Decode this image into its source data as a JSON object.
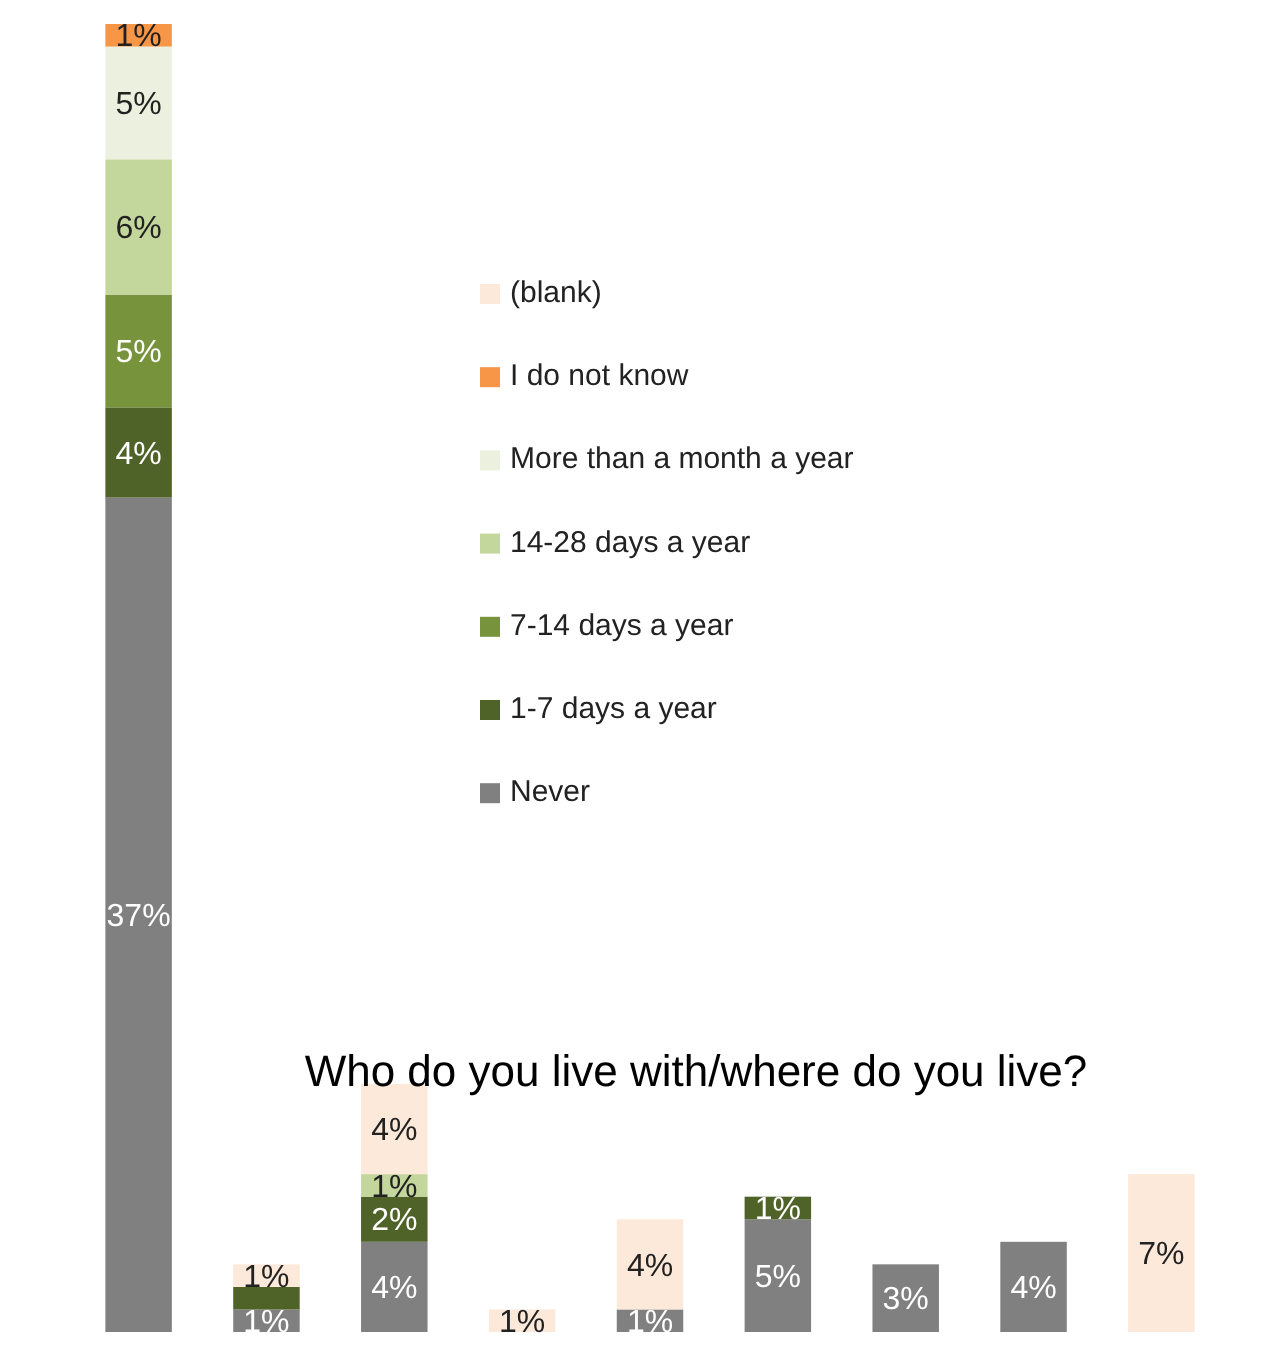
{
  "chart_data": {
    "type": "bar",
    "stacked": true,
    "title": "Who do you live with/where do you live?",
    "categories": [
      null,
      null,
      null,
      null,
      null,
      null,
      null,
      null,
      null
    ],
    "legend": "top right",
    "series": [
      {
        "name": "Never",
        "color": "#808080",
        "values": [
          37,
          1,
          4,
          null,
          1,
          5,
          3,
          4,
          null
        ],
        "value_labels": [
          "37%",
          "1%",
          "4%",
          null,
          "1%",
          "5%",
          "3%",
          "4%",
          null
        ]
      },
      {
        "name": "1-7 days a year",
        "color": "#4f6228",
        "values": [
          4,
          1,
          2,
          null,
          null,
          1,
          null,
          null,
          null
        ],
        "value_labels": [
          "4%",
          null,
          "2%",
          null,
          null,
          "1%",
          null,
          null,
          null
        ]
      },
      {
        "name": "7-14 days a year",
        "color": "#77933c",
        "values": [
          5,
          null,
          null,
          null,
          null,
          null,
          null,
          null,
          null
        ],
        "value_labels": [
          "5%",
          null,
          null,
          null,
          null,
          null,
          null,
          null,
          null
        ]
      },
      {
        "name": "14-28 days a year",
        "color": "#c3d69b",
        "values": [
          6,
          null,
          1,
          null,
          null,
          null,
          null,
          null,
          null
        ],
        "value_labels": [
          "6%",
          null,
          "1%",
          null,
          null,
          null,
          null,
          null,
          null
        ]
      },
      {
        "name": "More than a month a year",
        "color": "#ebf1de",
        "values": [
          5,
          null,
          null,
          null,
          null,
          null,
          null,
          null,
          null
        ],
        "value_labels": [
          "5%",
          null,
          null,
          null,
          null,
          null,
          null,
          null,
          null
        ]
      },
      {
        "name": "I do not know",
        "color": "#f79646",
        "values": [
          1,
          null,
          null,
          null,
          null,
          null,
          null,
          null,
          null
        ],
        "value_labels": [
          "1%",
          null,
          null,
          null,
          null,
          null,
          null,
          null,
          null
        ]
      },
      {
        "name": "(blank)",
        "color": "#fde9d9",
        "values": [
          null,
          1,
          4,
          1,
          4,
          null,
          null,
          null,
          7
        ],
        "value_labels": [
          null,
          "1%",
          "4%",
          "1%",
          "4%",
          null,
          null,
          null,
          "7%"
        ]
      }
    ]
  }
}
